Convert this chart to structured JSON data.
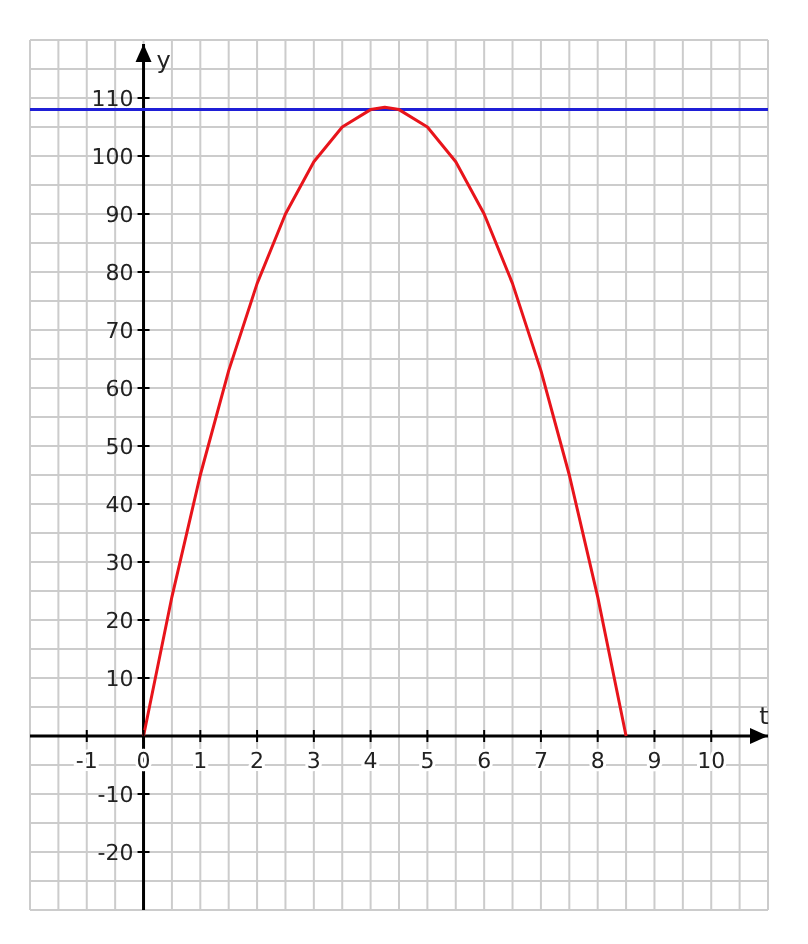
{
  "chart_data": {
    "type": "line",
    "xlabel": "t",
    "ylabel": "y",
    "x": [
      0,
      0.5,
      1,
      1.5,
      2,
      2.5,
      3,
      3.5,
      4,
      4.25,
      4.5,
      5,
      5.5,
      6,
      6.5,
      7,
      7.5,
      8,
      8.5
    ],
    "series": [
      {
        "color": "#e8141b",
        "values": [
          0,
          24,
          45,
          63,
          78,
          90,
          99,
          105,
          108,
          108.4,
          108,
          105,
          99,
          90,
          78,
          63,
          45,
          24,
          0
        ]
      }
    ],
    "ref_lines": [
      {
        "axis": "y",
        "value": 108,
        "color": "#1f1fd6"
      }
    ],
    "xlim": [
      -2,
      11
    ],
    "xticks": [
      {
        "value": -2,
        "label": null
      },
      {
        "value": -1.5,
        "label": null
      },
      -1,
      {
        "value": -0.5,
        "label": null
      },
      0,
      {
        "value": 0.5,
        "label": null
      },
      1,
      {
        "value": 1.5,
        "label": null
      },
      2,
      {
        "value": 2.5,
        "label": null
      },
      3,
      {
        "value": 3.5,
        "label": null
      },
      4,
      {
        "value": 4.5,
        "label": null
      },
      5,
      {
        "value": 5.5,
        "label": null
      },
      6,
      {
        "value": 6.5,
        "label": null
      },
      7,
      {
        "value": 7.5,
        "label": null
      },
      8,
      {
        "value": 8.5,
        "label": null
      },
      9,
      {
        "value": 9.5,
        "label": null
      },
      10,
      {
        "value": 10.5,
        "label": null
      },
      {
        "value": 11,
        "label": null
      }
    ],
    "ylim": [
      -30,
      120
    ],
    "yticks": [
      {
        "value": -30,
        "label": null
      },
      {
        "value": -25,
        "label": null
      },
      -20,
      {
        "value": -15,
        "label": null
      },
      -10,
      {
        "value": -5,
        "label": null
      },
      {
        "value": 0,
        "label": null
      },
      {
        "value": 5,
        "label": null
      },
      10,
      {
        "value": 15,
        "label": null
      },
      20,
      {
        "value": 25,
        "label": null
      },
      30,
      {
        "value": 35,
        "label": null
      },
      40,
      {
        "value": 45,
        "label": null
      },
      50,
      {
        "value": 55,
        "label": null
      },
      60,
      {
        "value": 65,
        "label": null
      },
      70,
      {
        "value": 75,
        "label": null
      },
      80,
      {
        "value": 85,
        "label": null
      },
      90,
      {
        "value": 95,
        "label": null
      },
      100,
      {
        "value": 105,
        "label": null
      },
      110,
      {
        "value": 115,
        "label": null
      },
      {
        "value": 120,
        "label": null
      }
    ],
    "grid": true,
    "marker": "none",
    "line_style": "solid"
  }
}
